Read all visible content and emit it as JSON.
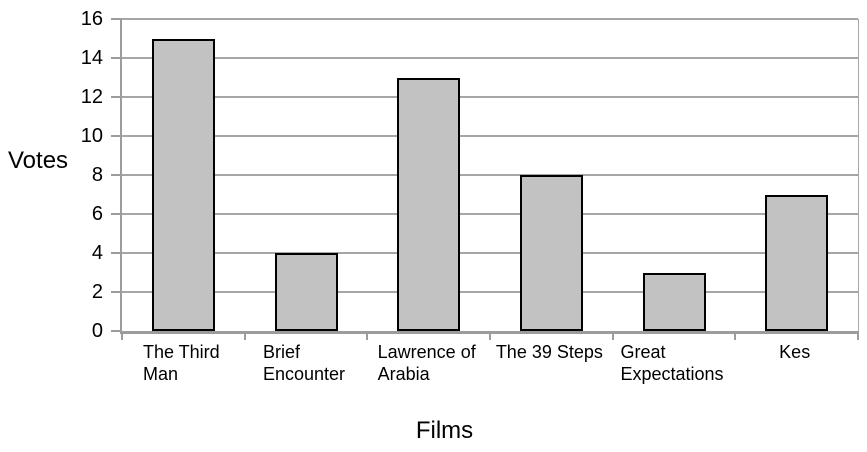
{
  "chart_data": {
    "type": "bar",
    "title": "",
    "categories": [
      "The Third Man",
      "Brief Encounter",
      "Lawrence of Arabia",
      "The 39 Steps",
      "Great Expectations",
      "Kes"
    ],
    "category_label_lines": [
      [
        "The Third",
        "Man"
      ],
      [
        "Brief",
        "Encounter"
      ],
      [
        "Lawrence of",
        "Arabia"
      ],
      [
        "The 39 Steps"
      ],
      [
        "Great",
        "Expectations"
      ],
      [
        "Kes"
      ]
    ],
    "values": [
      15,
      4,
      13,
      8,
      3,
      7
    ],
    "xlabel": "Films",
    "ylabel": "Votes",
    "ylim": [
      0,
      16
    ],
    "yticks": [
      0,
      2,
      4,
      6,
      8,
      10,
      12,
      14,
      16
    ],
    "grid": true,
    "legend_position": "none",
    "colors": {
      "bar_fill": "#c2c2c2",
      "bar_border": "#000000",
      "grid": "#a6a6a6",
      "axis": "#9c9c9c",
      "background": "#ffffff",
      "text": "#000000"
    }
  }
}
